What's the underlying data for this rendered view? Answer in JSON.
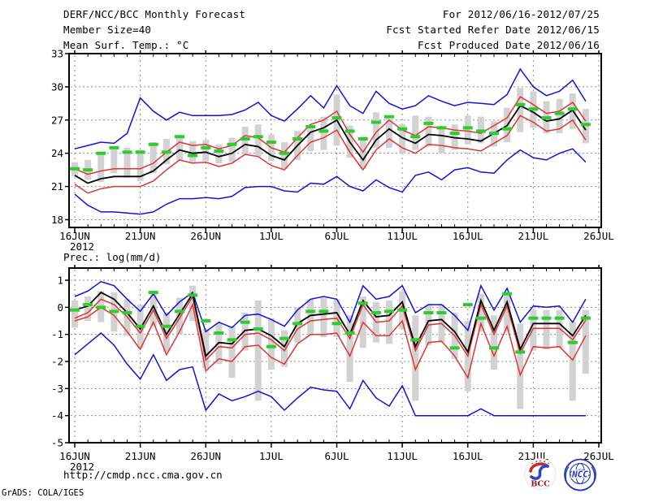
{
  "header": {
    "title": "DERF/NCC/BCC Monthly Forecast",
    "member_size": "Member Size=40",
    "temp_label": "Mean Surf. Temp.: °C",
    "for_period": "For 2012/06/16-2012/07/25",
    "fcst_start": "Fcst Started Refer Date 2012/06/15",
    "fcst_produced": "Fcst Produced Date 2012/06/16"
  },
  "prec_label": "Prec.: log(mm/d)",
  "footer": {
    "url": "http://cmdp.ncc.cma.gov.cn",
    "credit": "GrADS: COLA/IGES",
    "logos": [
      {
        "label": "BCC"
      },
      {
        "label": "NCC"
      }
    ]
  },
  "colors": {
    "blue": "#1212d8",
    "red": "#e03434",
    "green": "#2ecc2e",
    "black": "#000000",
    "bar": "#d2d2d2",
    "grid": "#8e8e8e"
  },
  "chart_data": [
    {
      "type": "line",
      "title": "Mean Surf. Temp.: °C",
      "xlabel": "",
      "ylabel": "°C",
      "x_axis": {
        "start": "16JUN2012",
        "end": "26JUL2012",
        "tick_interval_days": 5
      },
      "x_tick_labels": [
        "16JUN",
        "21JUN",
        "26JUN",
        "1JUL",
        "6JUL",
        "11JUL",
        "16JUL",
        "21JUL",
        "26JUL"
      ],
      "x_year_label": "2012",
      "n_days": 40,
      "y_ticks": [
        18,
        21,
        24,
        27,
        30,
        33
      ],
      "y_tick_labels": [
        "18",
        "21",
        "24",
        "27",
        "30",
        "33"
      ],
      "ylim": [
        17.3,
        33
      ],
      "grid": true,
      "legend": "none",
      "series": [
        {
          "name": "ensemble-max",
          "color": "blue",
          "style": "line",
          "values": [
            24.4,
            24.7,
            25.0,
            24.9,
            25.8,
            29.0,
            27.8,
            27.0,
            27.7,
            27.4,
            27.4,
            27.4,
            27.5,
            27.9,
            28.6,
            27.4,
            26.9,
            28.0,
            29.2,
            28.1,
            30.1,
            28.3,
            27.6,
            29.6,
            28.5,
            28.0,
            28.3,
            29.2,
            28.7,
            28.3,
            28.6,
            28.5,
            28.4,
            29.3,
            31.6,
            30.0,
            29.2,
            29.6,
            30.6,
            28.7
          ]
        },
        {
          "name": "ensemble-min",
          "color": "blue",
          "style": "line",
          "values": [
            20.3,
            19.3,
            18.7,
            18.7,
            18.6,
            18.5,
            18.7,
            19.4,
            19.9,
            19.9,
            20.0,
            19.9,
            20.1,
            20.9,
            21.0,
            21.0,
            20.6,
            20.5,
            21.3,
            21.2,
            21.9,
            21.0,
            20.6,
            21.6,
            20.9,
            20.5,
            22.0,
            22.3,
            21.6,
            22.5,
            22.7,
            22.3,
            22.2,
            23.4,
            24.3,
            23.6,
            23.4,
            24.0,
            24.4,
            23.2
          ]
        },
        {
          "name": "upper-spread",
          "color": "red",
          "style": "line",
          "values": [
            22.6,
            22.1,
            22.4,
            22.6,
            22.6,
            22.6,
            23.1,
            24.1,
            25.0,
            24.7,
            24.8,
            24.4,
            24.7,
            25.6,
            25.4,
            24.5,
            24.1,
            25.4,
            26.6,
            27.0,
            27.8,
            25.7,
            24.1,
            25.9,
            27.0,
            26.1,
            25.6,
            26.4,
            26.3,
            26.1,
            26.0,
            25.8,
            26.5,
            27.2,
            29.1,
            28.4,
            27.6,
            27.8,
            28.6,
            26.9
          ]
        },
        {
          "name": "lower-spread",
          "color": "red",
          "style": "line",
          "values": [
            21.2,
            20.4,
            20.8,
            21.0,
            21.0,
            21.0,
            21.5,
            22.5,
            23.4,
            23.1,
            23.2,
            22.8,
            23.1,
            23.9,
            23.7,
            22.9,
            22.5,
            23.8,
            25.0,
            25.4,
            26.1,
            24.1,
            22.5,
            24.3,
            25.3,
            24.5,
            24.0,
            24.8,
            24.7,
            24.5,
            24.4,
            24.2,
            24.9,
            25.6,
            27.4,
            26.8,
            26.0,
            26.2,
            27.0,
            25.2
          ]
        },
        {
          "name": "ensemble-mean",
          "color": "black",
          "style": "line",
          "values": [
            22.0,
            21.3,
            21.7,
            21.9,
            21.9,
            21.9,
            22.4,
            23.4,
            24.3,
            24.0,
            24.1,
            23.7,
            24.0,
            24.8,
            24.6,
            23.8,
            23.4,
            24.7,
            25.9,
            26.3,
            27.0,
            25.0,
            23.4,
            25.2,
            26.2,
            25.4,
            24.9,
            25.7,
            25.6,
            25.4,
            25.3,
            25.1,
            25.8,
            26.5,
            28.3,
            27.7,
            26.9,
            27.1,
            27.9,
            26.1
          ]
        },
        {
          "name": "observation",
          "color": "green",
          "style": "dashes",
          "values": [
            22.6,
            22.5,
            24.0,
            24.5,
            24.1,
            24.1,
            24.8,
            24.1,
            25.5,
            23.8,
            24.5,
            24.2,
            24.8,
            25.3,
            25.5,
            25.0,
            24.0,
            25.3,
            26.4,
            26.0,
            27.2,
            26.0,
            25.3,
            26.8,
            27.3,
            26.2,
            25.5,
            26.7,
            26.3,
            25.8,
            26.3,
            26.0,
            25.8,
            26.2,
            28.4,
            28.0,
            27.2,
            27.6,
            28.0,
            26.6
          ]
        }
      ],
      "bars": [
        [
          21.9,
          23.2
        ],
        [
          21.6,
          23.4
        ],
        [
          21.4,
          23.9
        ],
        [
          22.2,
          24.6
        ],
        [
          21.8,
          24.5
        ],
        [
          21.5,
          24.3
        ],
        [
          22.2,
          25.0
        ],
        [
          23.0,
          25.3
        ],
        [
          23.3,
          25.4
        ],
        [
          23.1,
          25.1
        ],
        [
          23.3,
          25.2
        ],
        [
          23.1,
          24.8
        ],
        [
          23.2,
          25.4
        ],
        [
          23.9,
          26.4
        ],
        [
          23.7,
          26.6
        ],
        [
          23.3,
          25.7
        ],
        [
          22.6,
          25.0
        ],
        [
          23.4,
          26.0
        ],
        [
          24.2,
          26.4
        ],
        [
          24.3,
          27.3
        ],
        [
          24.7,
          29.3
        ],
        [
          23.6,
          26.5
        ],
        [
          22.6,
          25.5
        ],
        [
          24.5,
          27.7
        ],
        [
          24.5,
          27.1
        ],
        [
          24.0,
          26.6
        ],
        [
          24.3,
          27.4
        ],
        [
          24.6,
          27.3
        ],
        [
          24.0,
          26.4
        ],
        [
          24.3,
          26.6
        ],
        [
          24.8,
          27.4
        ],
        [
          24.9,
          27.3
        ],
        [
          24.6,
          26.9
        ],
        [
          25.0,
          28.1
        ],
        [
          25.9,
          29.9
        ],
        [
          26.3,
          29.6
        ],
        [
          25.8,
          28.7
        ],
        [
          25.8,
          28.9
        ],
        [
          26.2,
          29.4
        ],
        [
          24.9,
          28.0
        ]
      ]
    },
    {
      "type": "line",
      "title": "Prec.: log(mm/d)",
      "xlabel": "",
      "ylabel": "log(mm/d)",
      "x_axis": {
        "start": "16JUN2012",
        "end": "26JUL2012",
        "tick_interval_days": 5
      },
      "x_tick_labels": [
        "16JUN",
        "21JUN",
        "26JUN",
        "1JUL",
        "6JUL",
        "11JUL",
        "16JUL",
        "21JUL",
        "26JUL"
      ],
      "x_year_label": "2012",
      "n_days": 40,
      "y_ticks": [
        -5,
        -4,
        -3,
        -2,
        -1,
        0,
        1
      ],
      "y_tick_labels": [
        "-5",
        "-4",
        "-3",
        "-2",
        "-1",
        "0",
        "1"
      ],
      "ylim": [
        -5,
        1.45
      ],
      "grid": true,
      "legend": "none",
      "series": [
        {
          "name": "ensemble-max",
          "color": "blue",
          "style": "line",
          "values": [
            0.4,
            0.6,
            0.95,
            0.8,
            0.3,
            -0.15,
            0.5,
            -0.3,
            0.2,
            0.55,
            -0.9,
            -0.55,
            -0.75,
            -0.3,
            -0.25,
            -0.45,
            -0.7,
            -0.1,
            0.3,
            0.4,
            0.3,
            -0.55,
            0.8,
            0.3,
            0.4,
            0.8,
            -0.2,
            0.1,
            0.1,
            -0.3,
            -0.85,
            0.8,
            -0.1,
            0.7,
            -0.55,
            0.05,
            0.0,
            0.05,
            -0.55,
            0.3
          ]
        },
        {
          "name": "ensemble-min",
          "color": "blue",
          "style": "line",
          "values": [
            -1.75,
            -1.35,
            -0.95,
            -1.4,
            -2.1,
            -2.65,
            -1.75,
            -2.7,
            -2.3,
            -2.2,
            -3.8,
            -3.2,
            -3.45,
            -3.3,
            -3.1,
            -3.3,
            -3.8,
            -3.35,
            -2.95,
            -3.05,
            -3.1,
            -3.75,
            -2.7,
            -3.35,
            -3.65,
            -2.9,
            -4.0,
            -4.0,
            -4.0,
            -4.0,
            -4.0,
            -3.75,
            -4.0,
            -4.0,
            -4.0,
            -4.0,
            -4.0,
            -4.0,
            -4.0,
            -4.0
          ]
        },
        {
          "name": "upper-spread",
          "color": "red",
          "style": "line",
          "values": [
            -0.4,
            -0.2,
            0.3,
            0.1,
            -0.35,
            -0.95,
            -0.1,
            -1.15,
            -0.4,
            0.4,
            -1.95,
            -1.45,
            -1.5,
            -1.0,
            -0.95,
            -1.2,
            -1.6,
            -0.8,
            -0.5,
            -0.45,
            -0.4,
            -1.15,
            0.1,
            -0.55,
            -0.5,
            0.05,
            -1.6,
            -0.65,
            -0.6,
            -1.05,
            -1.8,
            0.1,
            -1.0,
            0.05,
            -1.7,
            -0.78,
            -0.78,
            -0.78,
            -1.2,
            -0.48
          ]
        },
        {
          "name": "lower-spread",
          "color": "red",
          "style": "line",
          "values": [
            -0.5,
            -0.35,
            0.0,
            -0.3,
            -0.9,
            -1.55,
            -0.55,
            -1.75,
            -0.9,
            0.1,
            -2.35,
            -1.9,
            -2.0,
            -1.45,
            -1.4,
            -1.85,
            -2.1,
            -1.35,
            -1.0,
            -1.0,
            -0.95,
            -1.8,
            -0.55,
            -1.05,
            -1.05,
            -0.5,
            -2.3,
            -1.3,
            -1.25,
            -1.8,
            -2.6,
            -0.6,
            -1.8,
            -0.7,
            -2.5,
            -1.45,
            -1.5,
            -1.45,
            -1.95,
            -1.05
          ]
        },
        {
          "name": "ensemble-mean",
          "color": "black",
          "style": "line",
          "values": [
            -0.1,
            0.05,
            0.55,
            0.3,
            -0.2,
            -0.8,
            0.05,
            -1.0,
            -0.25,
            0.5,
            -1.8,
            -1.3,
            -1.35,
            -0.85,
            -0.8,
            -1.05,
            -1.45,
            -0.6,
            -0.3,
            -0.25,
            -0.2,
            -1.0,
            0.25,
            -0.35,
            -0.3,
            0.2,
            -1.45,
            -0.5,
            -0.45,
            -0.9,
            -1.65,
            0.25,
            -0.85,
            0.2,
            -1.55,
            -0.6,
            -0.6,
            -0.6,
            -1.05,
            -0.3
          ]
        },
        {
          "name": "observation",
          "color": "green",
          "style": "dashes",
          "values": [
            -0.1,
            0.1,
            0.0,
            -0.15,
            -0.2,
            -0.7,
            0.55,
            -0.7,
            -0.15,
            0.45,
            -0.5,
            -0.95,
            -1.2,
            -0.55,
            -0.8,
            -1.45,
            -1.15,
            -0.6,
            -0.15,
            -0.15,
            -0.6,
            -0.95,
            0.15,
            -0.2,
            -0.15,
            -0.1,
            -1.2,
            -0.2,
            -0.2,
            -1.5,
            0.1,
            -0.4,
            -1.5,
            0.5,
            -1.65,
            -0.4,
            -0.4,
            -0.4,
            -1.3,
            -0.4
          ]
        }
      ],
      "bars": [
        [
          -0.75,
          0.25
        ],
        [
          -0.5,
          0.4
        ],
        [
          -0.55,
          0.6
        ],
        [
          -0.9,
          0.55
        ],
        [
          -1.05,
          0.3
        ],
        [
          -1.5,
          0.1
        ],
        [
          -0.7,
          0.6
        ],
        [
          -1.65,
          -0.2
        ],
        [
          -1.0,
          0.35
        ],
        [
          -0.5,
          0.8
        ],
        [
          -2.25,
          -0.8
        ],
        [
          -2.1,
          -0.6
        ],
        [
          -2.6,
          -0.7
        ],
        [
          -1.6,
          -0.2
        ],
        [
          -3.45,
          0.25
        ],
        [
          -2.3,
          -0.4
        ],
        [
          -2.2,
          -0.85
        ],
        [
          -1.3,
          0.0
        ],
        [
          -1.05,
          0.3
        ],
        [
          -1.1,
          0.35
        ],
        [
          -1.1,
          0.3
        ],
        [
          -2.75,
          -0.3
        ],
        [
          -1.5,
          0.4
        ],
        [
          -1.3,
          0.2
        ],
        [
          -1.35,
          0.25
        ],
        [
          -0.8,
          0.6
        ],
        [
          -3.45,
          -0.3
        ],
        [
          -1.4,
          0.1
        ],
        [
          -1.3,
          0.1
        ],
        [
          -1.9,
          -0.2
        ],
        [
          -3.1,
          -0.5
        ],
        [
          -0.9,
          0.5
        ],
        [
          -2.3,
          -0.3
        ],
        [
          -0.9,
          0.55
        ],
        [
          -3.75,
          -0.6
        ],
        [
          -1.6,
          -0.1
        ],
        [
          -1.55,
          -0.1
        ],
        [
          -1.5,
          -0.1
        ],
        [
          -3.45,
          -0.5
        ],
        [
          -2.45,
          -0.1
        ]
      ]
    }
  ]
}
